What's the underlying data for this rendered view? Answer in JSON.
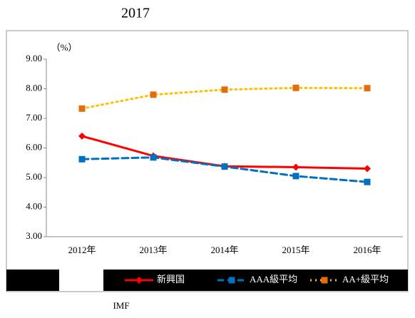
{
  "chart_data": {
    "type": "line",
    "title": "2017",
    "y_unit": "（%）",
    "source": "IMF",
    "categories": [
      "2012年",
      "2013年",
      "2014年",
      "2015年",
      "2016年"
    ],
    "series": [
      {
        "name": "新興国",
        "color": "#ff0000",
        "marker": "diamond",
        "dash": "solid",
        "values": [
          6.4,
          5.73,
          5.38,
          5.35,
          5.3
        ]
      },
      {
        "name": "AAA級平均",
        "color": "#0070c0",
        "marker": "square",
        "dash": "dashed",
        "values": [
          5.62,
          5.68,
          5.37,
          5.05,
          4.85
        ]
      },
      {
        "name": "AA+級平均",
        "color": "#ffc000",
        "marker_color": "#e46c0a",
        "marker": "square",
        "dash": "dotted",
        "values": [
          7.33,
          7.8,
          7.97,
          8.03,
          8.02
        ]
      }
    ],
    "ylim": [
      3,
      9
    ],
    "yticks": [
      {
        "value": 3,
        "label": "3.00"
      },
      {
        "value": 4,
        "label": "4.00"
      },
      {
        "value": 5,
        "label": "5.00"
      },
      {
        "value": 6,
        "label": "6.00"
      },
      {
        "value": 7,
        "label": "7.00"
      },
      {
        "value": 8,
        "label": "8.00"
      },
      {
        "value": 9,
        "label": "9.00"
      }
    ],
    "grid": false
  }
}
